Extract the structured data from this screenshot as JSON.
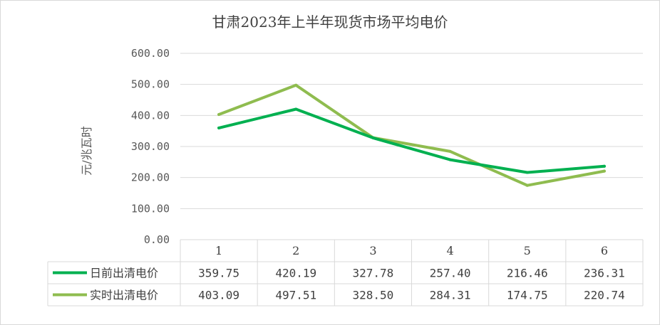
{
  "chart_data": {
    "type": "line",
    "title": "甘肃2023年上半年现货市场平均电价",
    "ylabel": "元/兆瓦时",
    "xlabel": "",
    "categories": [
      "1",
      "2",
      "3",
      "4",
      "5",
      "6"
    ],
    "ylim": [
      0,
      600
    ],
    "yticks": [
      "0.00",
      "100.00",
      "200.00",
      "300.00",
      "400.00",
      "500.00",
      "600.00"
    ],
    "grid": true,
    "legend": "data-table",
    "series": [
      {
        "name": "日前出清电价",
        "color": "#00b050",
        "values": [
          359.75,
          420.19,
          327.78,
          257.4,
          216.46,
          236.31
        ],
        "labels": [
          "359.75",
          "420.19",
          "327.78",
          "257.40",
          "216.46",
          "236.31"
        ]
      },
      {
        "name": "实时出清电价",
        "color": "#8fbc4f",
        "values": [
          403.09,
          497.51,
          328.5,
          284.31,
          174.75,
          220.74
        ],
        "labels": [
          "403.09",
          "497.51",
          "328.50",
          "284.31",
          "174.75",
          "220.74"
        ]
      }
    ]
  }
}
